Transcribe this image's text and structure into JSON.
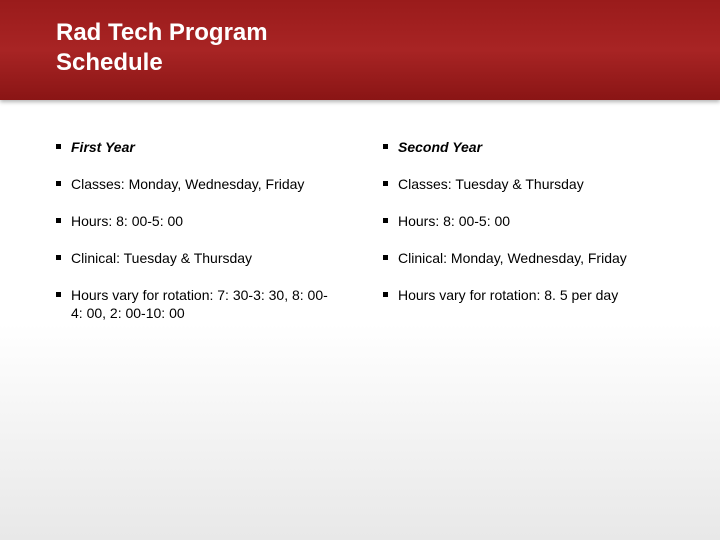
{
  "header": {
    "title_line1": "Rad Tech Program",
    "title_line2": "Schedule"
  },
  "columns": {
    "left": {
      "heading": "First Year",
      "items": [
        "Classes:  Monday, Wednesday, Friday",
        "Hours: 8: 00-5: 00",
        "Clinical:  Tuesday & Thursday",
        "Hours vary for rotation:   7: 30-3: 30, 8: 00-4: 00, 2: 00-10: 00"
      ]
    },
    "right": {
      "heading": "Second Year",
      "items": [
        "Classes:  Tuesday & Thursday",
        "Hours:  8: 00-5: 00",
        "Clinical: Monday, Wednesday, Friday",
        "Hours vary for rotation:  8. 5 per day"
      ]
    }
  },
  "styling": {
    "header_gradient_top": "#9a1b1b",
    "header_gradient_mid": "#a82424",
    "header_gradient_bottom": "#8a1515",
    "title_color": "#ffffff",
    "title_fontsize": 24,
    "body_fontsize": 14,
    "body_color": "#000000",
    "bullet_size": 5,
    "bullet_color": "#000000",
    "background_top": "#ffffff",
    "background_bottom": "#e8e8e8"
  }
}
